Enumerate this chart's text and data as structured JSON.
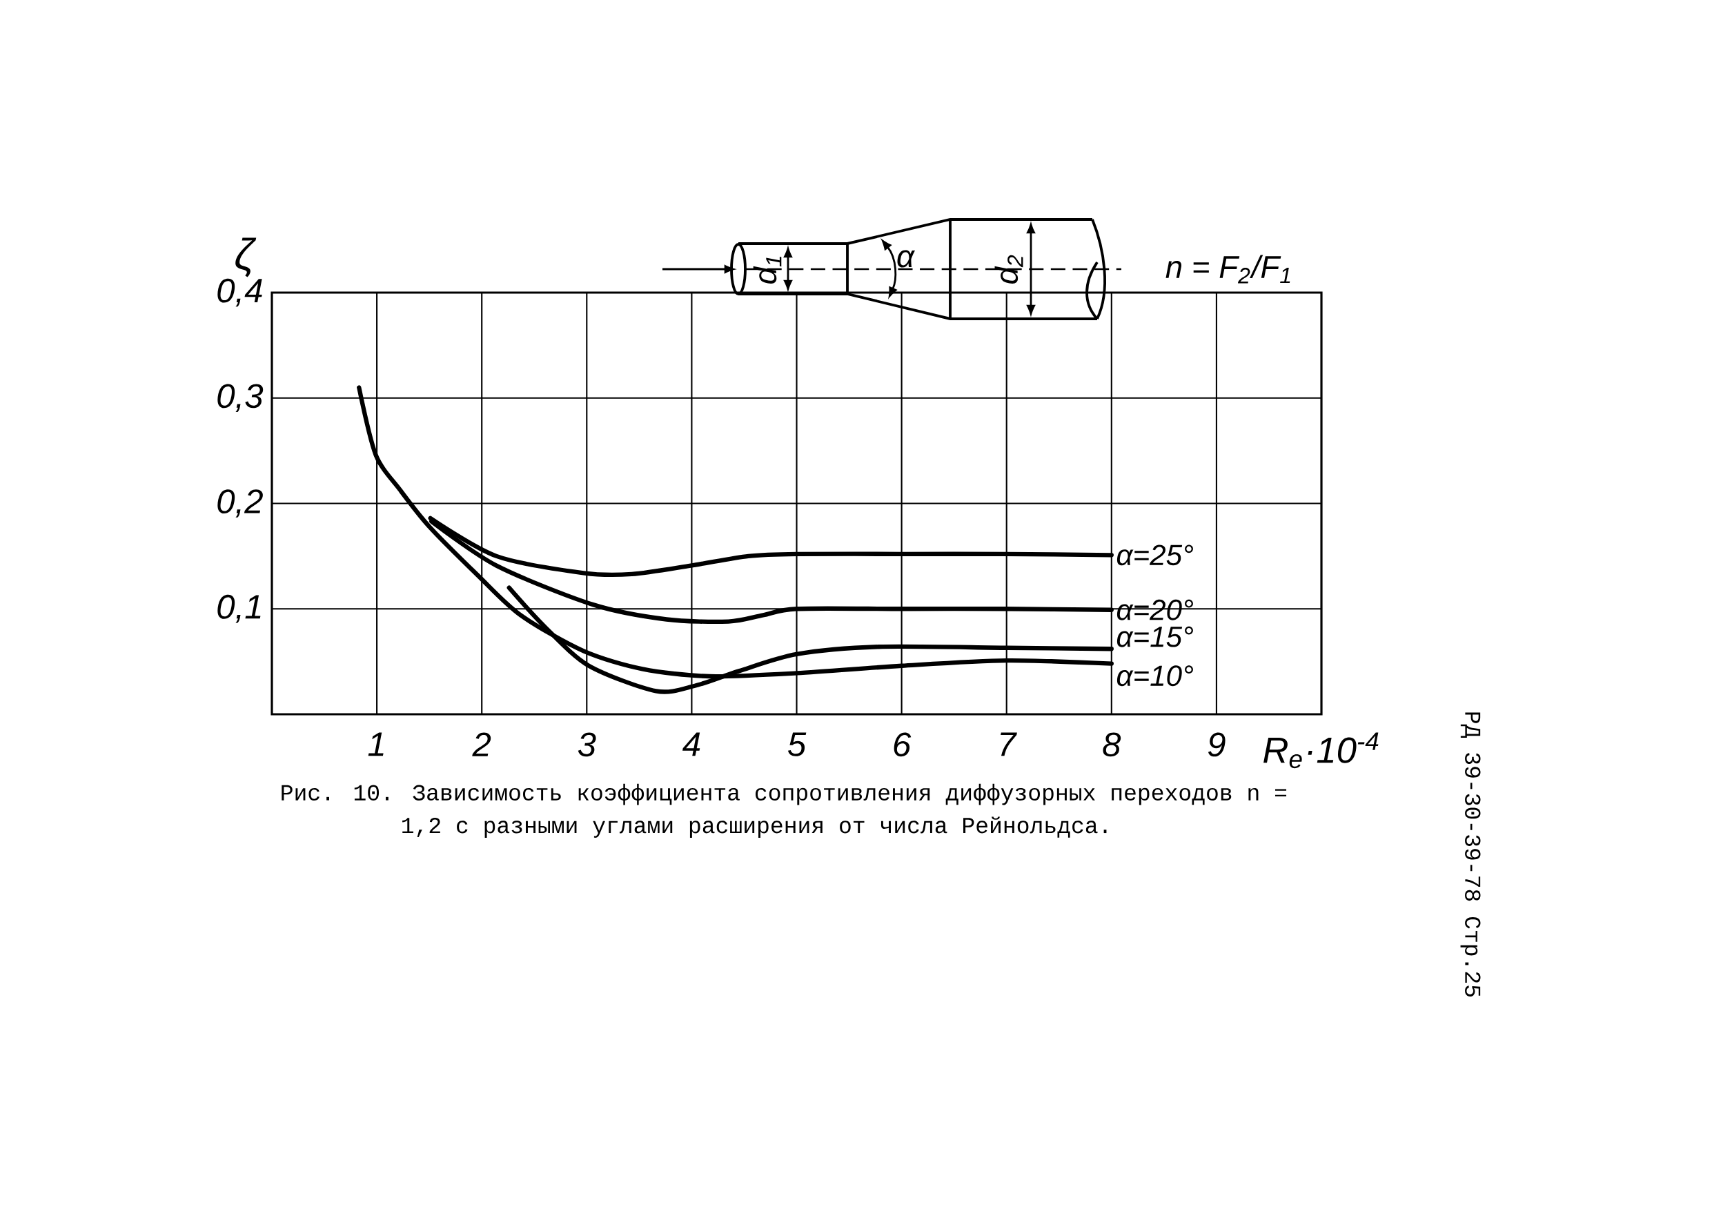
{
  "chart_data": {
    "type": "line",
    "xlabel": "R$_{e}$·10$^{-4}$",
    "ylabel": "ζ",
    "xlim": [
      0,
      10
    ],
    "ylim": [
      0,
      0.4
    ],
    "xticks": [
      1,
      2,
      3,
      4,
      5,
      6,
      7,
      8,
      9
    ],
    "yticks": [
      {
        "value": 0.1,
        "label": "0,1"
      },
      {
        "value": 0.2,
        "label": "0,2"
      },
      {
        "value": 0.3,
        "label": "0,3"
      },
      {
        "value": 0.4,
        "label": "0,4"
      }
    ],
    "grid": true,
    "series": [
      {
        "name": "α=25°",
        "color": "#000000",
        "x": [
          1.51,
          2.14,
          2.97,
          3.43,
          3.99,
          4.54,
          5.0,
          6.0,
          7.0,
          8.0
        ],
        "values": [
          0.186,
          0.15,
          0.134,
          0.133,
          0.141,
          0.15,
          0.152,
          0.152,
          0.152,
          0.151
        ]
      },
      {
        "name": "α=20°",
        "color": "#000000",
        "x": [
          1.52,
          2.14,
          3.06,
          3.76,
          4.35,
          4.68,
          5.0,
          6.0,
          7.0,
          8.0
        ],
        "values": [
          0.183,
          0.141,
          0.104,
          0.09,
          0.088,
          0.094,
          0.1,
          0.1,
          0.1,
          0.099
        ]
      },
      {
        "name": "α=15°",
        "color": "#000000",
        "x": [
          2.26,
          2.6,
          3.02,
          3.66,
          4.03,
          4.45,
          5.0,
          5.78,
          7.0,
          8.0
        ],
        "values": [
          0.12,
          0.083,
          0.046,
          0.022,
          0.027,
          0.041,
          0.057,
          0.064,
          0.063,
          0.062
        ]
      },
      {
        "name": "α=10°",
        "color": "#000000",
        "x": [
          0.83,
          0.99,
          1.22,
          1.5,
          1.96,
          2.37,
          2.97,
          3.53,
          4.17,
          5.0,
          6.0,
          7.0,
          8.0
        ],
        "values": [
          0.31,
          0.246,
          0.213,
          0.178,
          0.132,
          0.094,
          0.06,
          0.043,
          0.036,
          0.039,
          0.046,
          0.051,
          0.048
        ]
      }
    ],
    "annotations": [
      "Рис. 10. Зависимость коэффициента сопротивления диффузорных переходов n = 1,2 с разными углами расширения от числа Рейнольдса.",
      "РД 39-30-39-78 Стр.25",
      "d$_{1}$",
      "α",
      "d$_{2}$",
      "n = F$_{2}$/F$_{1}$"
    ]
  }
}
